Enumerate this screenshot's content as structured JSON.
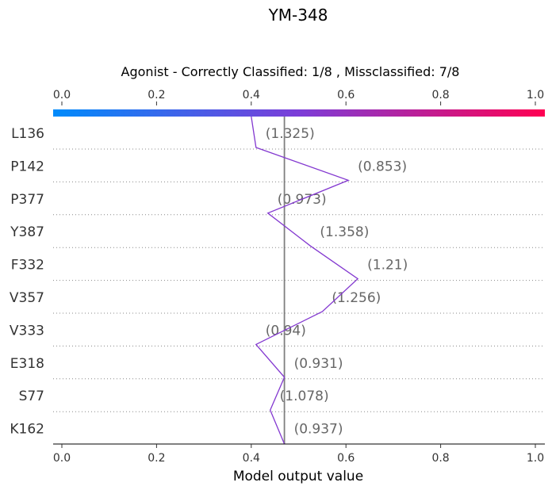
{
  "chart_data": {
    "type": "line",
    "title": "YM-348",
    "subtitle": "Agonist - Correctly Classified: 1/8 , Missclassified: 7/8",
    "xlabel": "Model output value",
    "xlim": [
      0.0,
      1.0
    ],
    "x_ticks": [
      "0.0",
      "0.2",
      "0.4",
      "0.6",
      "0.8",
      "1.0"
    ],
    "x_tick_values": [
      0.0,
      0.2,
      0.4,
      0.6,
      0.8,
      1.0
    ],
    "base_value": 0.47,
    "colorbar": {
      "from": "#008bfb",
      "mid": "#7c3dd8",
      "to": "#ff0052"
    },
    "line_color": "#8338d0",
    "base_line_color": "#808080",
    "grid": "dotted horizontal",
    "features": [
      "L136",
      "P142",
      "P377",
      "Y387",
      "F332",
      "V357",
      "V333",
      "E318",
      "S77",
      "K162"
    ],
    "feature_values": [
      "(1.325)",
      "(0.853)",
      "(0.973)",
      "(1.358)",
      "(1.21)",
      "(1.256)",
      "(0.94)",
      "(0.931)",
      "(1.078)",
      "(0.937)"
    ],
    "path_x": [
      0.41,
      0.605,
      0.435,
      0.525,
      0.625,
      0.55,
      0.41,
      0.47,
      0.44,
      0.47
    ]
  }
}
